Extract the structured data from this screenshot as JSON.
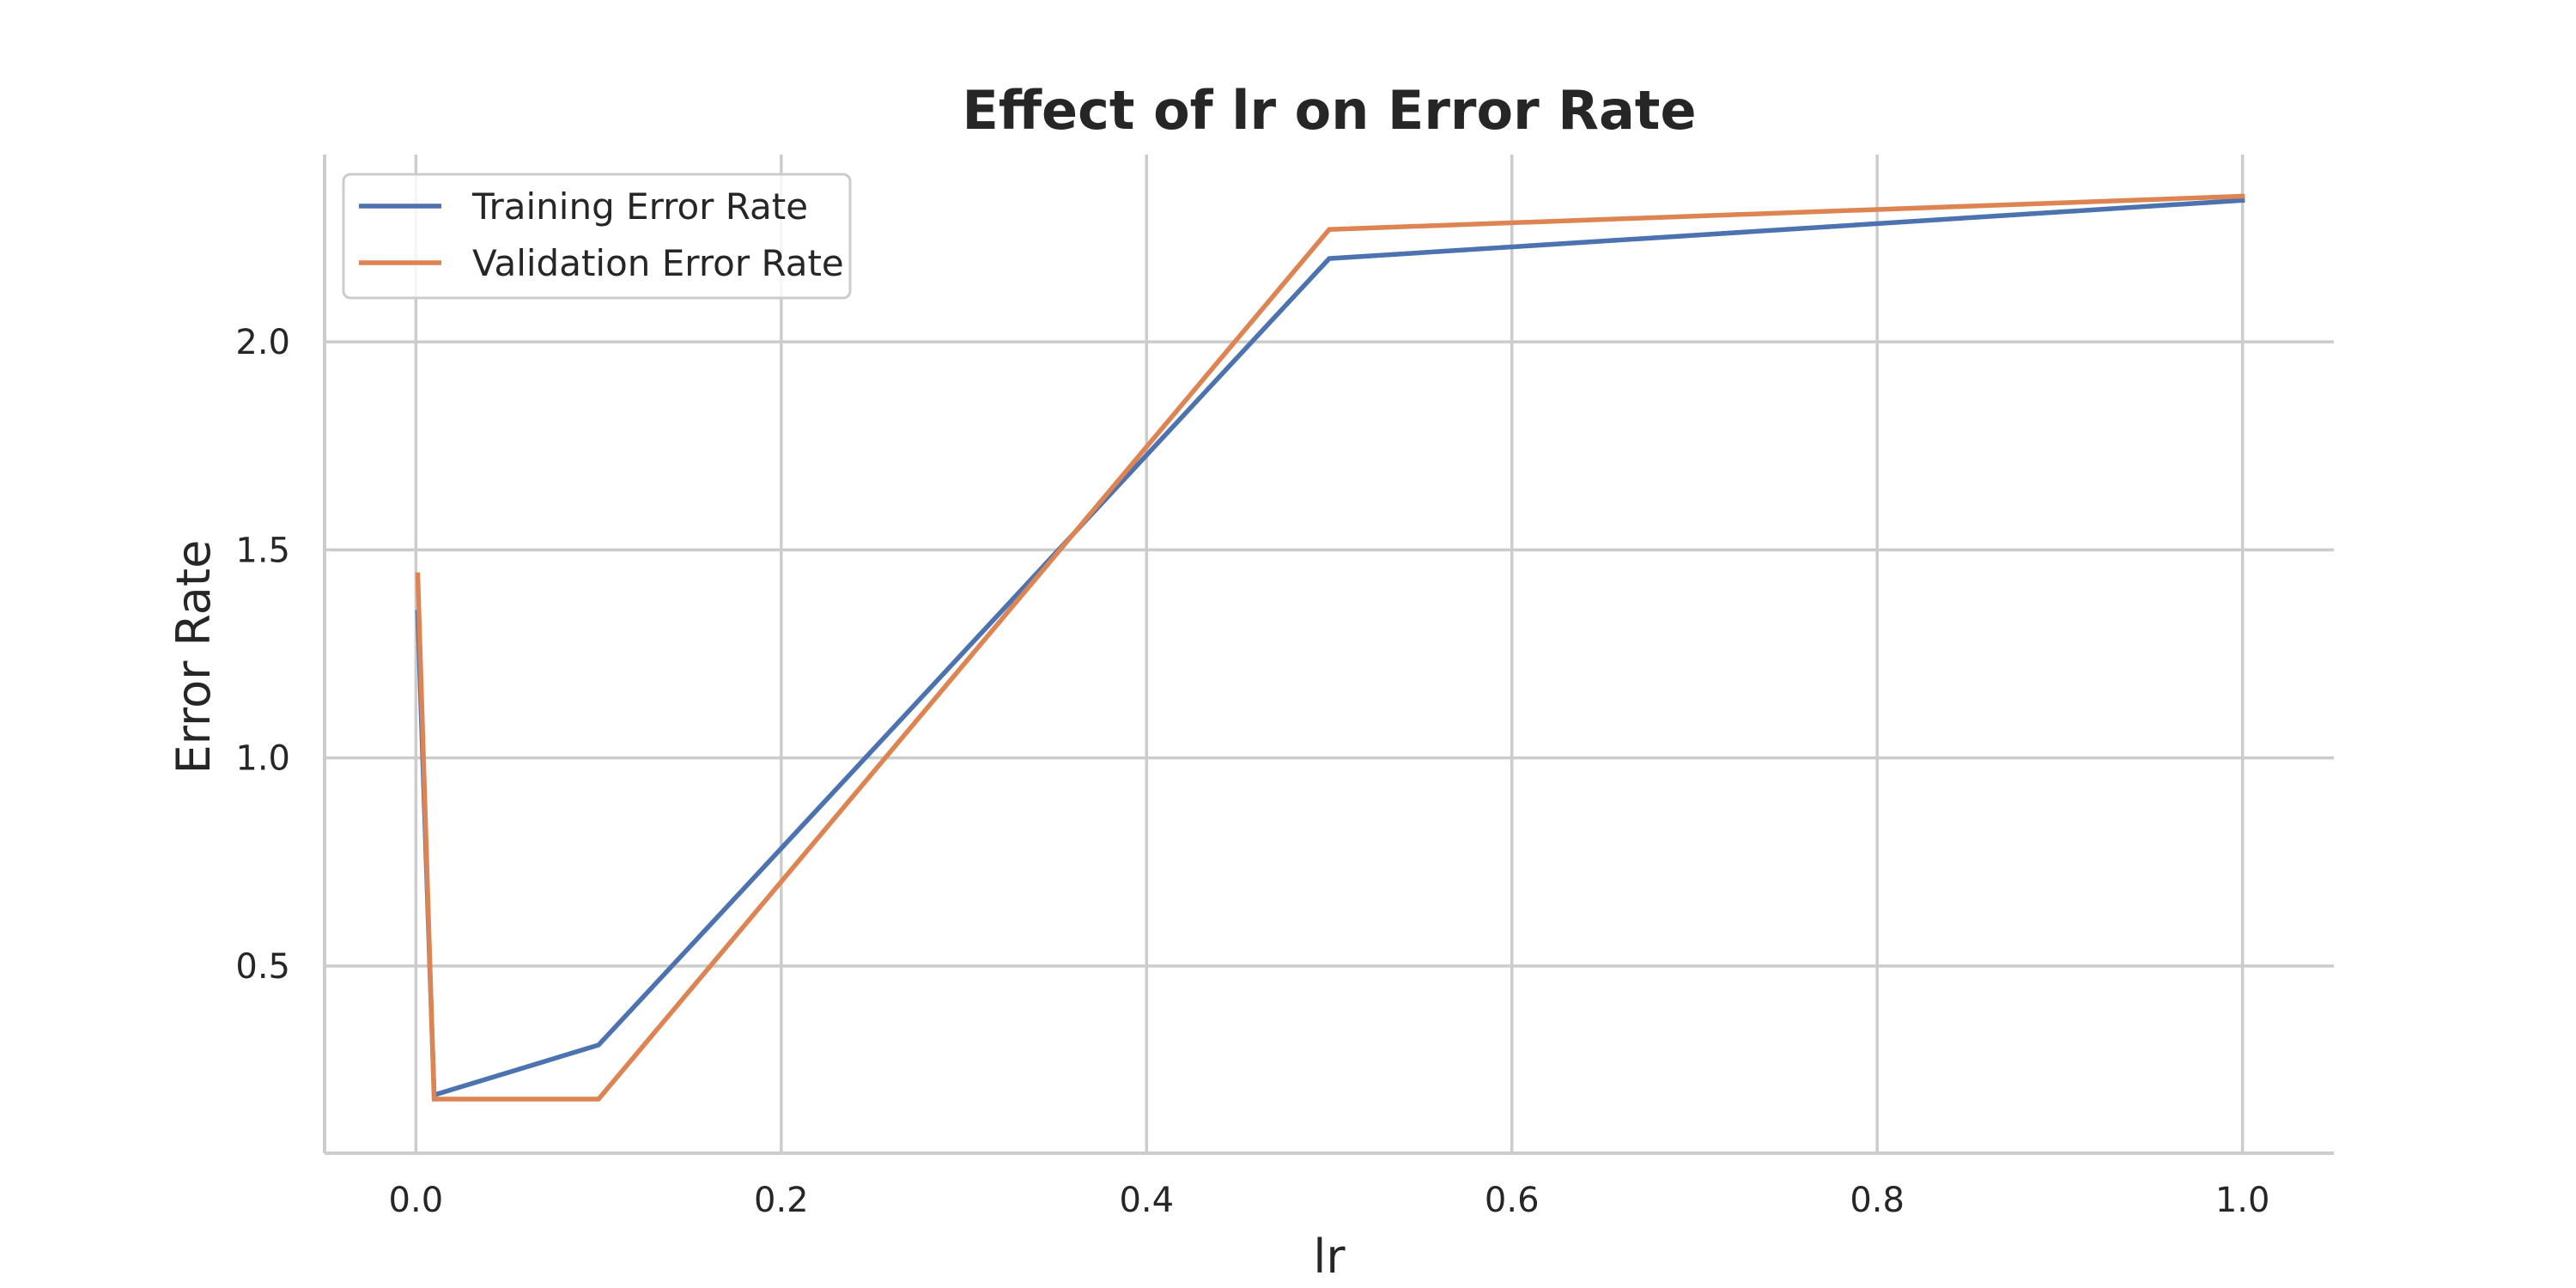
{
  "chart_data": {
    "type": "line",
    "title": "Effect of lr on Error Rate",
    "xlabel": "lr",
    "ylabel": "Error Rate",
    "xlim": [
      -0.05,
      1.05
    ],
    "ylim": [
      0.05,
      2.45
    ],
    "xticks": [
      0.0,
      0.2,
      0.4,
      0.6,
      0.8,
      1.0
    ],
    "xtick_labels": [
      "0.0",
      "0.2",
      "0.4",
      "0.6",
      "0.8",
      "1.0"
    ],
    "yticks": [
      0.5,
      1.0,
      1.5,
      2.0
    ],
    "ytick_labels": [
      "0.5",
      "1.0",
      "1.5",
      "2.0"
    ],
    "grid": true,
    "legend_position": "top-left",
    "x": [
      0.001,
      0.01,
      0.1,
      0.5,
      1.0
    ],
    "series": [
      {
        "name": "Training Error Rate",
        "color": "#4c72b0",
        "values": [
          1.35,
          0.19,
          0.31,
          2.2,
          2.34
        ]
      },
      {
        "name": "Validation Error Rate",
        "color": "#dd8452",
        "values": [
          1.44,
          0.18,
          0.18,
          2.27,
          2.35
        ]
      }
    ]
  }
}
